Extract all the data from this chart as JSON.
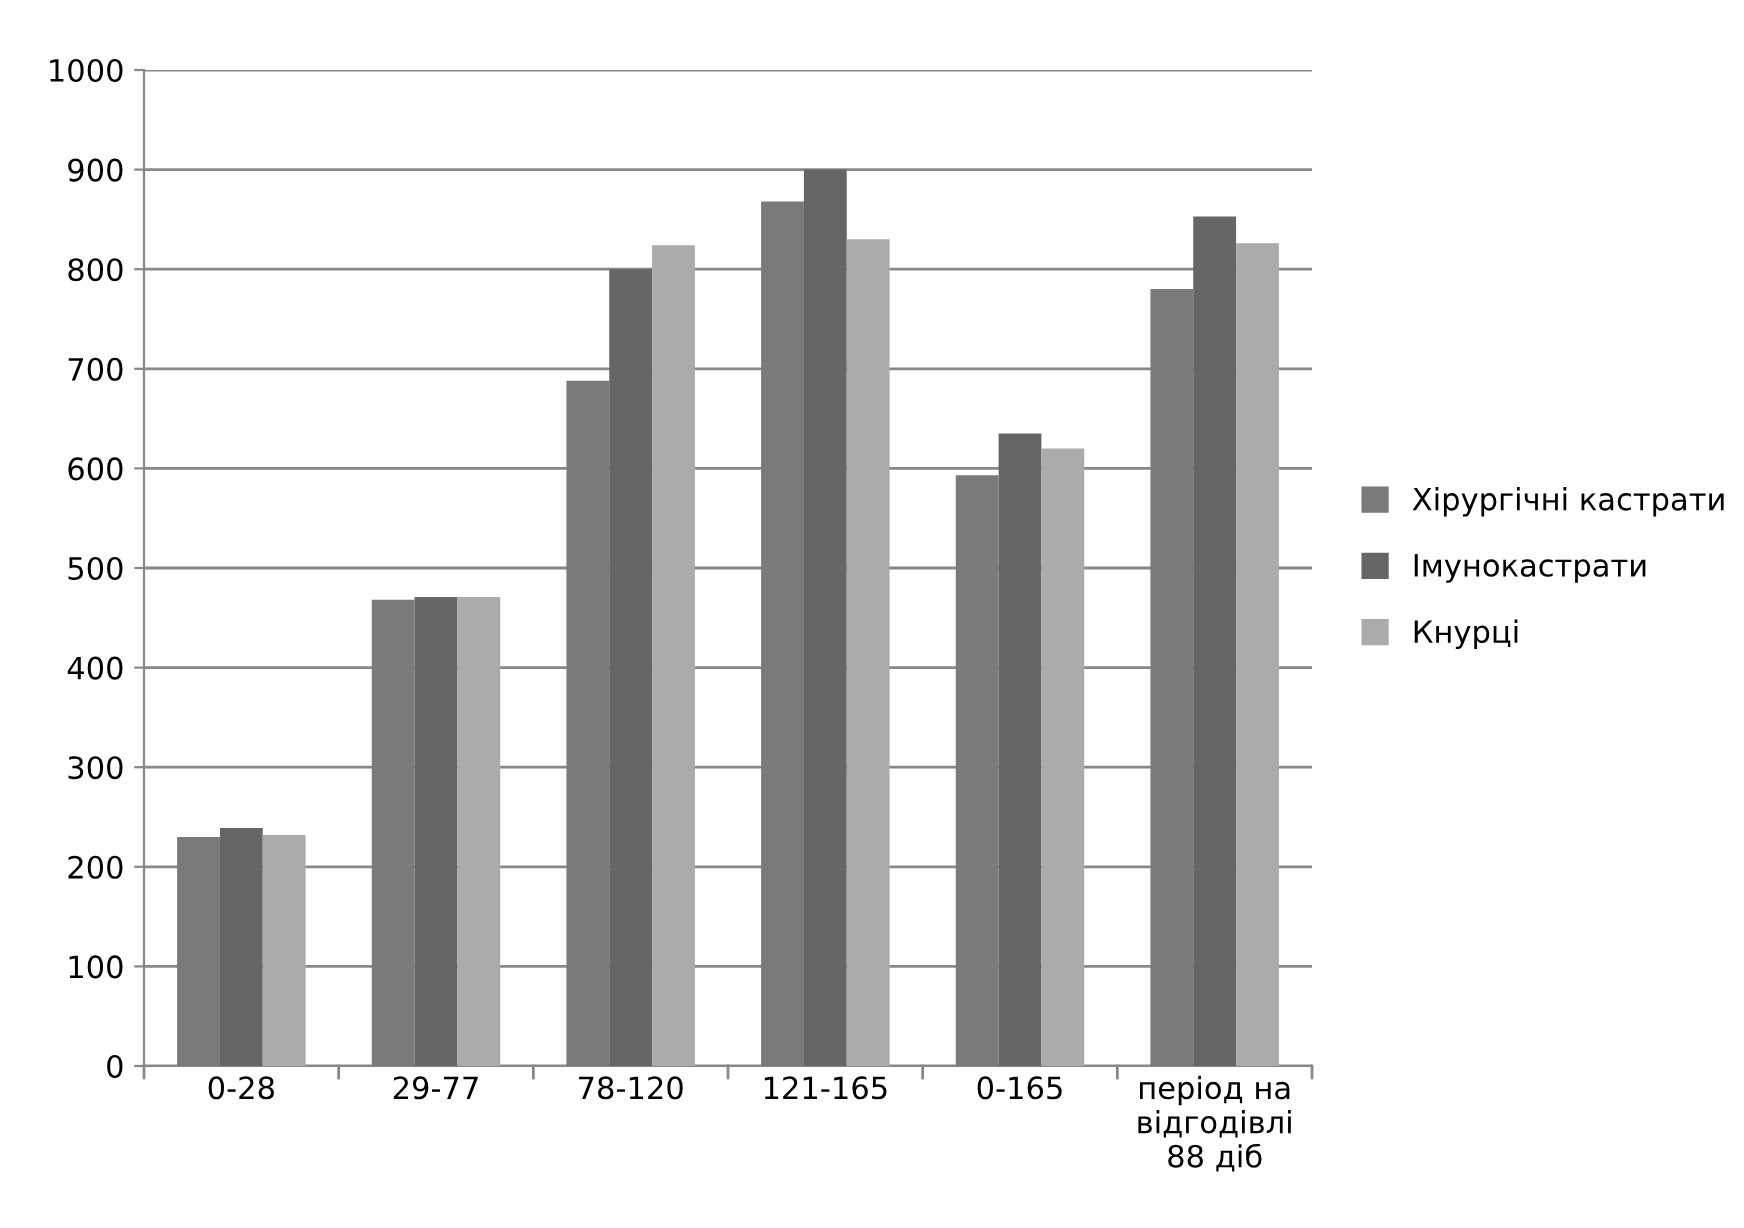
{
  "chart_data": {
    "type": "bar",
    "categories": [
      "0-28",
      "29-77",
      "78-120",
      "121-165",
      "0-165",
      "період на\nвідгодівлі\n88 діб"
    ],
    "series": [
      {
        "name": "Хірургічні кастрати",
        "color": "#7a7a7a",
        "values": [
          230,
          468,
          688,
          868,
          593,
          780
        ]
      },
      {
        "name": "Імунокастрати",
        "color": "#666666",
        "values": [
          239,
          471,
          800,
          900,
          635,
          853
        ]
      },
      {
        "name": "Кнурці",
        "color": "#ababab",
        "values": [
          232,
          471,
          824,
          830,
          620,
          826
        ]
      }
    ],
    "ylim": [
      0,
      1000
    ],
    "yticks": [
      0,
      100,
      200,
      300,
      400,
      500,
      600,
      700,
      800,
      900,
      1000
    ],
    "grid": "y",
    "legend": "right"
  }
}
